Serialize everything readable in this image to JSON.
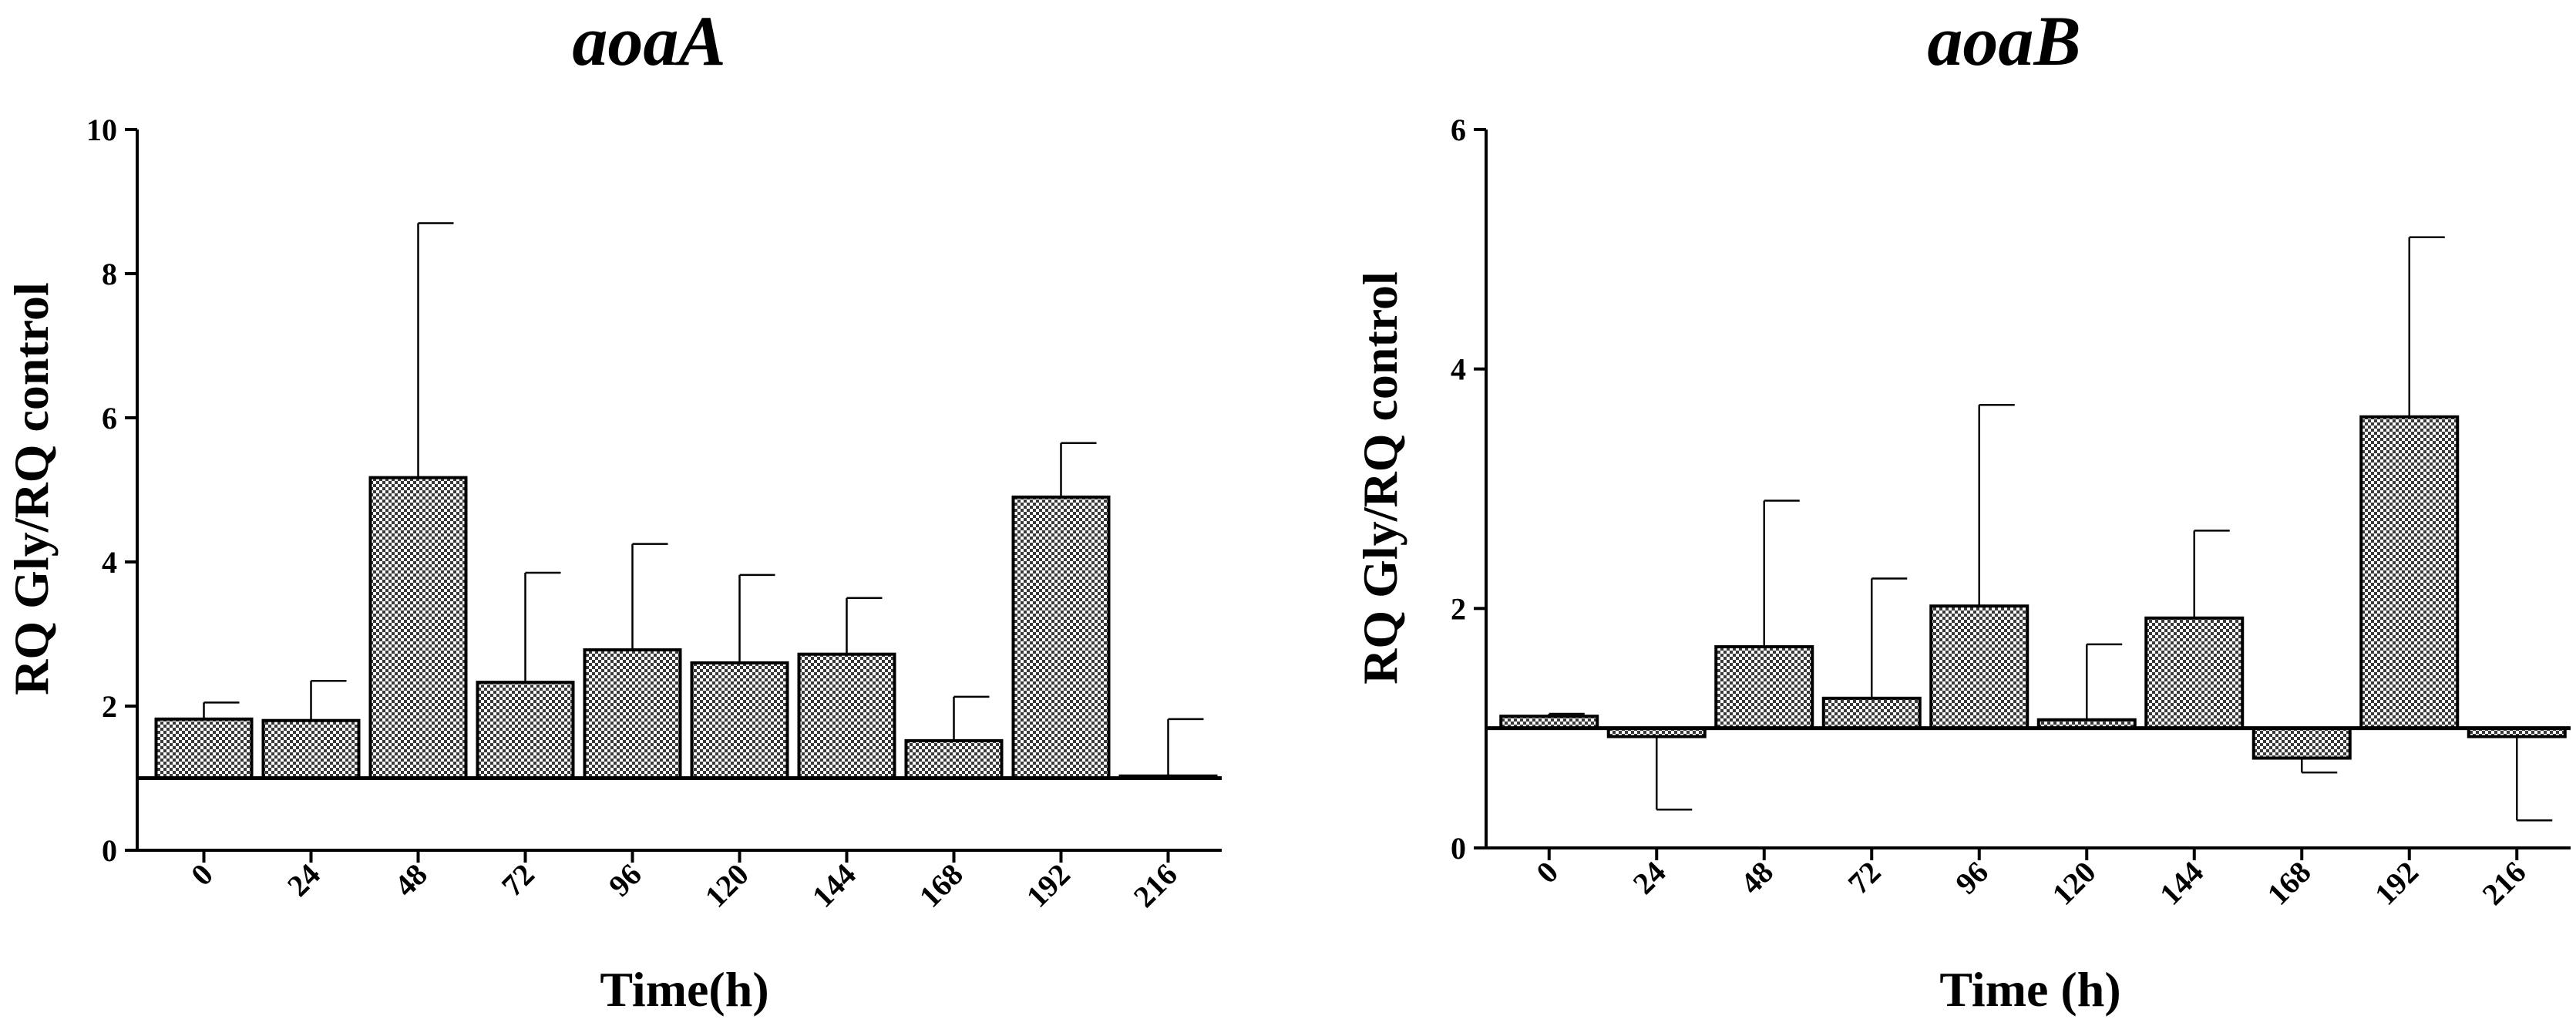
{
  "chart_data": [
    {
      "type": "bar",
      "title": "aoaA",
      "xlabel": "Time(h)",
      "ylabel": "RQ Gly/RQ control",
      "categories": [
        "0",
        "24",
        "48",
        "72",
        "96",
        "120",
        "144",
        "168",
        "192",
        "216"
      ],
      "values": [
        1.82,
        1.8,
        5.17,
        2.33,
        2.78,
        2.6,
        2.72,
        1.52,
        4.9,
        1.03
      ],
      "error_upper": [
        2.05,
        2.35,
        8.7,
        3.85,
        4.25,
        3.82,
        3.5,
        2.13,
        5.65,
        1.82
      ],
      "baseline": 1,
      "ylim": [
        0,
        10
      ],
      "yticks": [
        0,
        2,
        4,
        6,
        8,
        10
      ]
    },
    {
      "type": "bar",
      "title": "aoaB",
      "xlabel": "Time (h)",
      "ylabel": "RQ Gly/RQ control",
      "categories": [
        "0",
        "24",
        "48",
        "72",
        "96",
        "120",
        "144",
        "168",
        "192",
        "216"
      ],
      "values": [
        1.1,
        0.93,
        1.68,
        1.25,
        2.02,
        1.07,
        1.92,
        0.75,
        3.6,
        0.93
      ],
      "error_upper": [
        1.12,
        0.32,
        2.9,
        2.25,
        3.7,
        1.7,
        2.65,
        0.63,
        5.1,
        0.23
      ],
      "baseline": 1,
      "ylim": [
        0,
        6
      ],
      "yticks": [
        0,
        2,
        4,
        6
      ]
    }
  ],
  "colors": {
    "bar_fill": "#b0b0b0",
    "axis": "#000000"
  }
}
